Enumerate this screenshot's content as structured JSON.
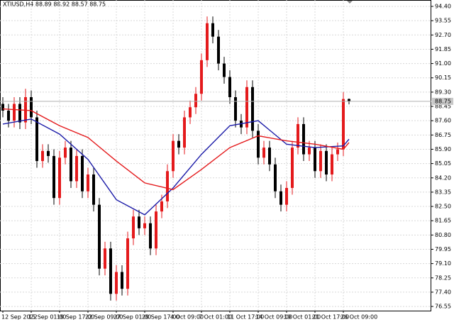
{
  "chart_data": {
    "type": "candlestick",
    "title": "XTIUSD,H4  88.89 88.92 88.57 88.75",
    "up_color": "#e41a1c",
    "down_color": "#000000",
    "grid": true,
    "last_price": 88.75,
    "categories": [
      "12 Sep 2022",
      null,
      null,
      null,
      null,
      "15 Sep 01:00",
      null,
      null,
      null,
      null,
      "19 Sep 17:00",
      null,
      null,
      null,
      null,
      "22 Sep 09:00",
      null,
      null,
      null,
      null,
      "27 Sep 01:00",
      null,
      null,
      null,
      null,
      "29 Sep 17:00",
      null,
      null,
      null,
      null,
      "4 Oct 09:00",
      null,
      null,
      null,
      null,
      "7 Oct 01:00",
      null,
      null,
      null,
      null,
      "11 Oct 17:00",
      null,
      null,
      null,
      null,
      "14 Oct 09:00",
      null,
      null,
      null,
      null,
      "19 Oct 01:00",
      null,
      null,
      null,
      null,
      "21 Oct 17:00",
      null,
      null,
      null,
      null,
      "26 Oct 09:00",
      null
    ],
    "open": [
      88.6,
      88.2,
      87.6,
      88.6,
      87.5,
      89.0,
      87.8,
      85.2,
      85.8,
      85.5,
      83.0,
      85.4,
      86.0,
      84.0,
      85.5,
      83.4,
      84.4,
      82.6,
      78.8,
      80.0,
      77.3,
      78.6,
      77.6,
      80.6,
      81.9,
      81.2,
      81.5,
      80.0,
      82.2,
      82.8,
      84.6,
      86.4,
      86.0,
      87.8,
      88.4,
      89.2,
      91.2,
      93.4,
      92.6,
      91.0,
      90.2,
      89.0,
      87.6,
      87.2,
      89.6,
      87.0,
      85.4,
      86.0,
      85.0,
      83.4,
      82.6,
      83.6,
      86.0,
      87.4,
      85.6,
      86.0,
      84.6,
      85.8,
      84.4,
      85.6,
      85.9,
      88.89
    ],
    "high": [
      89.0,
      88.6,
      89.0,
      89.0,
      89.5,
      89.4,
      88.2,
      86.2,
      86.2,
      85.9,
      85.8,
      86.4,
      86.4,
      85.9,
      85.9,
      84.8,
      84.8,
      83.0,
      80.4,
      80.4,
      79.0,
      79.0,
      81.0,
      82.3,
      82.3,
      81.9,
      81.9,
      82.6,
      83.2,
      85.0,
      86.8,
      86.8,
      88.2,
      88.8,
      89.6,
      91.6,
      93.8,
      93.8,
      93.0,
      91.4,
      90.6,
      89.4,
      88.0,
      90.0,
      90.0,
      87.4,
      86.4,
      86.4,
      85.4,
      83.8,
      84.0,
      86.4,
      87.8,
      87.8,
      86.4,
      86.4,
      86.2,
      86.2,
      86.0,
      86.3,
      89.3,
      88.92
    ],
    "low": [
      87.8,
      87.2,
      87.2,
      87.1,
      87.1,
      87.4,
      84.8,
      84.8,
      85.1,
      82.6,
      82.6,
      85.0,
      83.6,
      83.6,
      83.0,
      83.0,
      82.2,
      78.4,
      78.4,
      76.9,
      76.9,
      77.2,
      77.2,
      80.2,
      80.8,
      80.8,
      79.6,
      79.6,
      81.8,
      82.4,
      84.2,
      85.6,
      85.6,
      87.4,
      88.0,
      88.8,
      90.8,
      92.2,
      90.6,
      89.8,
      88.6,
      87.2,
      86.8,
      86.8,
      86.6,
      85.0,
      85.0,
      84.6,
      83.0,
      82.2,
      82.2,
      83.2,
      85.6,
      85.2,
      85.2,
      84.2,
      84.2,
      84.0,
      84.0,
      85.2,
      85.5,
      88.57
    ],
    "close": [
      88.2,
      87.6,
      88.6,
      87.5,
      89.0,
      87.8,
      85.2,
      85.8,
      85.5,
      83.0,
      85.4,
      86.0,
      84.0,
      85.5,
      83.4,
      84.4,
      82.6,
      78.8,
      80.0,
      77.3,
      78.6,
      77.6,
      80.6,
      81.9,
      81.2,
      81.5,
      80.0,
      82.2,
      82.8,
      84.6,
      86.4,
      86.0,
      87.8,
      88.4,
      89.2,
      91.2,
      93.4,
      92.6,
      91.0,
      90.2,
      89.0,
      87.6,
      87.2,
      89.6,
      87.0,
      85.4,
      86.0,
      85.0,
      83.4,
      82.6,
      83.6,
      86.0,
      87.4,
      85.6,
      86.0,
      84.6,
      85.8,
      84.4,
      85.6,
      85.9,
      88.89,
      88.75
    ],
    "moving_averages": [
      {
        "color": "#1c1ca8",
        "x": [
          0,
          5,
          10,
          15,
          20,
          25,
          30,
          35,
          40,
          45,
          50,
          55,
          60,
          61
        ],
        "values": [
          87.4,
          87.7,
          86.8,
          85.3,
          82.9,
          82.0,
          83.6,
          85.6,
          87.3,
          87.6,
          86.2,
          86.0,
          86.1,
          86.5
        ]
      },
      {
        "color": "#e41a1c",
        "x": [
          0,
          5,
          10,
          15,
          20,
          25,
          30,
          35,
          40,
          45,
          50,
          55,
          60,
          61
        ],
        "values": [
          88.3,
          88.2,
          87.3,
          86.6,
          85.2,
          83.9,
          83.5,
          84.7,
          86.0,
          86.7,
          86.4,
          86.2,
          85.9,
          86.3
        ]
      }
    ],
    "ylim": [
      76.3,
      94.78
    ],
    "yticks": [
      {
        "value": 94.4,
        "label": "94.40"
      },
      93.55,
      {
        "value": 92.7,
        "label": "92.70"
      },
      91.85,
      {
        "value": 91.0,
        "label": "91.00"
      },
      90.15,
      {
        "value": 89.3,
        "label": "89.30"
      },
      88.45,
      {
        "value": 87.6,
        "label": "87.60"
      },
      86.75,
      {
        "value": 85.9,
        "label": "85.90"
      },
      85.05,
      {
        "value": 84.2,
        "label": "84.20"
      },
      83.35,
      {
        "value": 82.5,
        "label": "82.50"
      },
      81.65,
      {
        "value": 80.8,
        "label": "80.80"
      },
      79.95,
      {
        "value": 79.1,
        "label": "79.10"
      },
      78.25,
      {
        "value": 77.4,
        "label": "77.40"
      },
      76.55
    ]
  }
}
